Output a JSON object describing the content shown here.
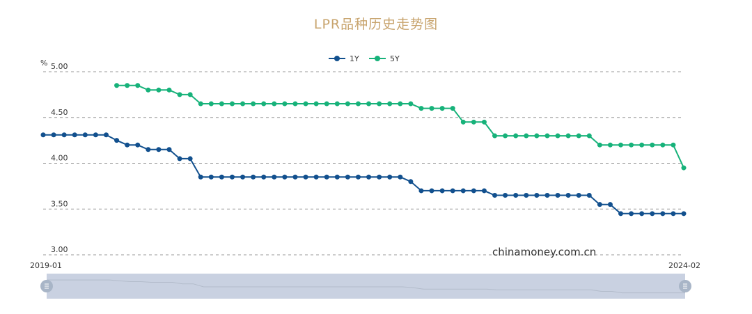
{
  "chart_data": {
    "type": "line",
    "title": "LPR品种历史走势图",
    "y_unit": "%",
    "ylim": [
      3.0,
      5.0
    ],
    "y_ticks": [
      "5.00",
      "4.50",
      "4.00",
      "3.50",
      "3.00"
    ],
    "x_range_labels": [
      "2019-01",
      "2024-02"
    ],
    "x": [
      "2019-01",
      "2019-02",
      "2019-03",
      "2019-04",
      "2019-05",
      "2019-06",
      "2019-07",
      "2019-08",
      "2019-09",
      "2019-10",
      "2019-11",
      "2019-12",
      "2020-01",
      "2020-02",
      "2020-03",
      "2020-04",
      "2020-05",
      "2020-06",
      "2020-07",
      "2020-08",
      "2020-09",
      "2020-10",
      "2020-11",
      "2020-12",
      "2021-01",
      "2021-02",
      "2021-03",
      "2021-04",
      "2021-05",
      "2021-06",
      "2021-07",
      "2021-08",
      "2021-09",
      "2021-10",
      "2021-11",
      "2021-12",
      "2022-01",
      "2022-02",
      "2022-03",
      "2022-04",
      "2022-05",
      "2022-06",
      "2022-07",
      "2022-08",
      "2022-09",
      "2022-10",
      "2022-11",
      "2022-12",
      "2023-01",
      "2023-02",
      "2023-03",
      "2023-04",
      "2023-05",
      "2023-06",
      "2023-07",
      "2023-08",
      "2023-09",
      "2023-10",
      "2023-11",
      "2023-12",
      "2024-01",
      "2024-02"
    ],
    "series": [
      {
        "name": "1Y",
        "color": "#12508e",
        "values": [
          4.31,
          4.31,
          4.31,
          4.31,
          4.31,
          4.31,
          4.31,
          4.25,
          4.2,
          4.2,
          4.15,
          4.15,
          4.15,
          4.05,
          4.05,
          3.85,
          3.85,
          3.85,
          3.85,
          3.85,
          3.85,
          3.85,
          3.85,
          3.85,
          3.85,
          3.85,
          3.85,
          3.85,
          3.85,
          3.85,
          3.85,
          3.85,
          3.85,
          3.85,
          3.85,
          3.8,
          3.7,
          3.7,
          3.7,
          3.7,
          3.7,
          3.7,
          3.7,
          3.65,
          3.65,
          3.65,
          3.65,
          3.65,
          3.65,
          3.65,
          3.65,
          3.65,
          3.65,
          3.55,
          3.55,
          3.45,
          3.45,
          3.45,
          3.45,
          3.45,
          3.45,
          3.45
        ]
      },
      {
        "name": "5Y",
        "color": "#17b27a",
        "values": [
          null,
          null,
          null,
          null,
          null,
          null,
          null,
          4.85,
          4.85,
          4.85,
          4.8,
          4.8,
          4.8,
          4.75,
          4.75,
          4.65,
          4.65,
          4.65,
          4.65,
          4.65,
          4.65,
          4.65,
          4.65,
          4.65,
          4.65,
          4.65,
          4.65,
          4.65,
          4.65,
          4.65,
          4.65,
          4.65,
          4.65,
          4.65,
          4.65,
          4.65,
          4.6,
          4.6,
          4.6,
          4.6,
          4.45,
          4.45,
          4.45,
          4.3,
          4.3,
          4.3,
          4.3,
          4.3,
          4.3,
          4.3,
          4.3,
          4.3,
          4.3,
          4.2,
          4.2,
          4.2,
          4.2,
          4.2,
          4.2,
          4.2,
          4.2,
          3.95
        ]
      }
    ],
    "legend_position": "top-center",
    "grid": true,
    "watermark": "chinamoney.com.cn"
  }
}
